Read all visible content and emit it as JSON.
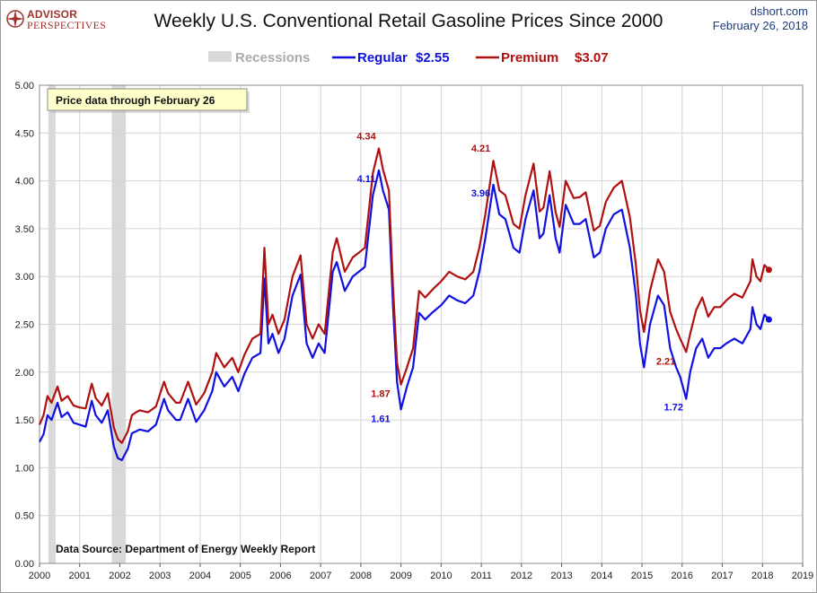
{
  "header": {
    "brand_line1": "ADVISOR",
    "brand_line2": "PERSPECTIVES",
    "title": "Weekly U.S. Conventional Retail Gasoline Prices Since 2000",
    "site": "dshort.com",
    "date": "February 26, 2018"
  },
  "colors": {
    "regular": "#1010e0",
    "premium": "#b01010",
    "recession": "#d9d9d9",
    "brand": "#a1312b"
  },
  "chart_data": {
    "type": "line",
    "title": "Weekly U.S. Conventional Retail Gasoline Prices Since 2000",
    "xlabel": "",
    "ylabel": "",
    "xlim": [
      2000,
      2019
    ],
    "ylim": [
      0,
      5
    ],
    "grid": true,
    "legend_position": "top-center",
    "x_ticks": [
      "2000",
      "2001",
      "2002",
      "2003",
      "2004",
      "2005",
      "2006",
      "2007",
      "2008",
      "2009",
      "2010",
      "2011",
      "2012",
      "2013",
      "2014",
      "2015",
      "2016",
      "2017",
      "2018",
      "2019"
    ],
    "y_ticks": [
      "0.00",
      "0.50",
      "1.00",
      "1.50",
      "2.00",
      "2.50",
      "3.00",
      "3.50",
      "4.00",
      "4.50",
      "5.00"
    ],
    "legend": [
      {
        "key": "recession",
        "label": "Recessions"
      },
      {
        "key": "regular",
        "label": "Regular",
        "value_label": "$2.55"
      },
      {
        "key": "premium",
        "label": "Premium",
        "value_label": "$3.07"
      }
    ],
    "recessions": [
      [
        2000.22,
        2000.4
      ],
      [
        2001.8,
        2002.15
      ]
    ],
    "series": [
      {
        "name": "Regular",
        "key": "regular",
        "x": [
          2000.0,
          2000.1,
          2000.2,
          2000.3,
          2000.45,
          2000.55,
          2000.7,
          2000.85,
          2001.0,
          2001.15,
          2001.3,
          2001.4,
          2001.55,
          2001.7,
          2001.85,
          2001.95,
          2002.05,
          2002.2,
          2002.3,
          2002.4,
          2002.5,
          2002.7,
          2002.9,
          2003.1,
          2003.2,
          2003.4,
          2003.5,
          2003.7,
          2003.9,
          2004.1,
          2004.3,
          2004.4,
          2004.6,
          2004.8,
          2004.95,
          2005.1,
          2005.3,
          2005.5,
          2005.6,
          2005.7,
          2005.8,
          2005.95,
          2006.1,
          2006.3,
          2006.5,
          2006.65,
          2006.8,
          2006.95,
          2007.1,
          2007.3,
          2007.4,
          2007.6,
          2007.8,
          2007.95,
          2008.1,
          2008.3,
          2008.45,
          2008.55,
          2008.7,
          2008.8,
          2008.9,
          2009.0,
          2009.15,
          2009.3,
          2009.45,
          2009.6,
          2009.8,
          2010.0,
          2010.2,
          2010.4,
          2010.6,
          2010.8,
          2010.95,
          2011.1,
          2011.3,
          2011.45,
          2011.6,
          2011.8,
          2011.95,
          2012.1,
          2012.3,
          2012.45,
          2012.55,
          2012.7,
          2012.85,
          2012.95,
          2013.1,
          2013.3,
          2013.45,
          2013.6,
          2013.8,
          2013.95,
          2014.1,
          2014.3,
          2014.5,
          2014.7,
          2014.85,
          2014.95,
          2015.05,
          2015.2,
          2015.4,
          2015.55,
          2015.7,
          2015.85,
          2015.95,
          2016.1,
          2016.2,
          2016.35,
          2016.5,
          2016.65,
          2016.8,
          2016.95,
          2017.1,
          2017.3,
          2017.5,
          2017.7,
          2017.75,
          2017.85,
          2017.95,
          2018.05,
          2018.16
        ],
        "y": [
          1.27,
          1.35,
          1.55,
          1.5,
          1.68,
          1.53,
          1.58,
          1.47,
          1.45,
          1.43,
          1.7,
          1.55,
          1.47,
          1.6,
          1.22,
          1.1,
          1.08,
          1.2,
          1.36,
          1.38,
          1.4,
          1.38,
          1.45,
          1.72,
          1.6,
          1.5,
          1.5,
          1.72,
          1.48,
          1.6,
          1.8,
          2.0,
          1.85,
          1.95,
          1.8,
          1.98,
          2.15,
          2.2,
          2.98,
          2.3,
          2.4,
          2.2,
          2.35,
          2.8,
          3.02,
          2.3,
          2.15,
          2.3,
          2.2,
          3.05,
          3.15,
          2.85,
          3.0,
          3.05,
          3.1,
          3.85,
          4.11,
          3.9,
          3.7,
          2.7,
          1.9,
          1.61,
          1.85,
          2.05,
          2.62,
          2.55,
          2.63,
          2.7,
          2.8,
          2.75,
          2.72,
          2.8,
          3.05,
          3.4,
          3.96,
          3.65,
          3.6,
          3.3,
          3.25,
          3.6,
          3.9,
          3.4,
          3.45,
          3.85,
          3.4,
          3.25,
          3.75,
          3.55,
          3.55,
          3.6,
          3.2,
          3.25,
          3.5,
          3.65,
          3.7,
          3.3,
          2.8,
          2.3,
          2.05,
          2.5,
          2.8,
          2.7,
          2.25,
          2.05,
          1.95,
          1.72,
          2.0,
          2.25,
          2.35,
          2.15,
          2.25,
          2.25,
          2.3,
          2.35,
          2.3,
          2.45,
          2.68,
          2.5,
          2.45,
          2.6,
          2.55
        ]
      },
      {
        "name": "Premium",
        "key": "premium",
        "x": [
          2000.0,
          2000.1,
          2000.2,
          2000.3,
          2000.45,
          2000.55,
          2000.7,
          2000.85,
          2001.0,
          2001.15,
          2001.3,
          2001.4,
          2001.55,
          2001.7,
          2001.85,
          2001.95,
          2002.05,
          2002.2,
          2002.3,
          2002.4,
          2002.5,
          2002.7,
          2002.9,
          2003.1,
          2003.2,
          2003.4,
          2003.5,
          2003.7,
          2003.9,
          2004.1,
          2004.3,
          2004.4,
          2004.6,
          2004.8,
          2004.95,
          2005.1,
          2005.3,
          2005.5,
          2005.6,
          2005.7,
          2005.8,
          2005.95,
          2006.1,
          2006.3,
          2006.5,
          2006.65,
          2006.8,
          2006.95,
          2007.1,
          2007.3,
          2007.4,
          2007.6,
          2007.8,
          2007.95,
          2008.1,
          2008.3,
          2008.45,
          2008.55,
          2008.7,
          2008.8,
          2008.9,
          2009.0,
          2009.15,
          2009.3,
          2009.45,
          2009.6,
          2009.8,
          2010.0,
          2010.2,
          2010.4,
          2010.6,
          2010.8,
          2010.95,
          2011.1,
          2011.3,
          2011.45,
          2011.6,
          2011.8,
          2011.95,
          2012.1,
          2012.3,
          2012.45,
          2012.55,
          2012.7,
          2012.85,
          2012.95,
          2013.1,
          2013.3,
          2013.45,
          2013.6,
          2013.8,
          2013.95,
          2014.1,
          2014.3,
          2014.5,
          2014.7,
          2014.85,
          2014.95,
          2015.05,
          2015.2,
          2015.4,
          2015.55,
          2015.7,
          2015.85,
          2015.95,
          2016.1,
          2016.2,
          2016.35,
          2016.5,
          2016.65,
          2016.8,
          2016.95,
          2017.1,
          2017.3,
          2017.5,
          2017.7,
          2017.75,
          2017.85,
          2017.95,
          2018.05,
          2018.16
        ],
        "y": [
          1.45,
          1.55,
          1.75,
          1.68,
          1.85,
          1.7,
          1.75,
          1.65,
          1.63,
          1.62,
          1.88,
          1.73,
          1.65,
          1.78,
          1.42,
          1.3,
          1.26,
          1.38,
          1.55,
          1.58,
          1.6,
          1.58,
          1.64,
          1.9,
          1.78,
          1.68,
          1.68,
          1.9,
          1.66,
          1.78,
          2.0,
          2.2,
          2.05,
          2.15,
          2.0,
          2.18,
          2.35,
          2.4,
          3.3,
          2.5,
          2.6,
          2.4,
          2.55,
          3.0,
          3.22,
          2.5,
          2.35,
          2.5,
          2.4,
          3.25,
          3.4,
          3.05,
          3.2,
          3.25,
          3.3,
          4.08,
          4.34,
          4.12,
          3.9,
          2.9,
          2.1,
          1.87,
          2.05,
          2.25,
          2.85,
          2.78,
          2.87,
          2.95,
          3.05,
          3.0,
          2.97,
          3.05,
          3.3,
          3.65,
          4.21,
          3.9,
          3.85,
          3.55,
          3.5,
          3.85,
          4.18,
          3.68,
          3.72,
          4.1,
          3.67,
          3.52,
          4.0,
          3.82,
          3.83,
          3.88,
          3.48,
          3.53,
          3.78,
          3.93,
          4.0,
          3.62,
          3.12,
          2.65,
          2.42,
          2.85,
          3.18,
          3.05,
          2.63,
          2.45,
          2.35,
          2.21,
          2.4,
          2.65,
          2.78,
          2.58,
          2.68,
          2.68,
          2.75,
          2.82,
          2.78,
          2.95,
          3.18,
          3.0,
          2.95,
          3.12,
          3.07
        ]
      }
    ],
    "annotations": [
      {
        "text": "4.34",
        "series": "premium",
        "x": 2008.45,
        "y": 4.34,
        "pos": "above-left"
      },
      {
        "text": "4.11",
        "series": "regular",
        "x": 2008.45,
        "y": 4.11,
        "pos": "below-left"
      },
      {
        "text": "1.87",
        "series": "premium",
        "x": 2009.0,
        "y": 1.87,
        "pos": "left"
      },
      {
        "text": "1.61",
        "series": "regular",
        "x": 2009.0,
        "y": 1.61,
        "pos": "left"
      },
      {
        "text": "4.21",
        "series": "premium",
        "x": 2011.3,
        "y": 4.21,
        "pos": "above-left"
      },
      {
        "text": "3.96",
        "series": "regular",
        "x": 2011.3,
        "y": 3.96,
        "pos": "below-left"
      },
      {
        "text": "2.21",
        "series": "premium",
        "x": 2016.1,
        "y": 2.21,
        "pos": "left"
      },
      {
        "text": "1.72",
        "series": "regular",
        "x": 2016.1,
        "y": 1.72,
        "pos": "below-left"
      }
    ],
    "note": "Price data through February 26",
    "source": "Data Source: Department of Energy Weekly Report"
  }
}
